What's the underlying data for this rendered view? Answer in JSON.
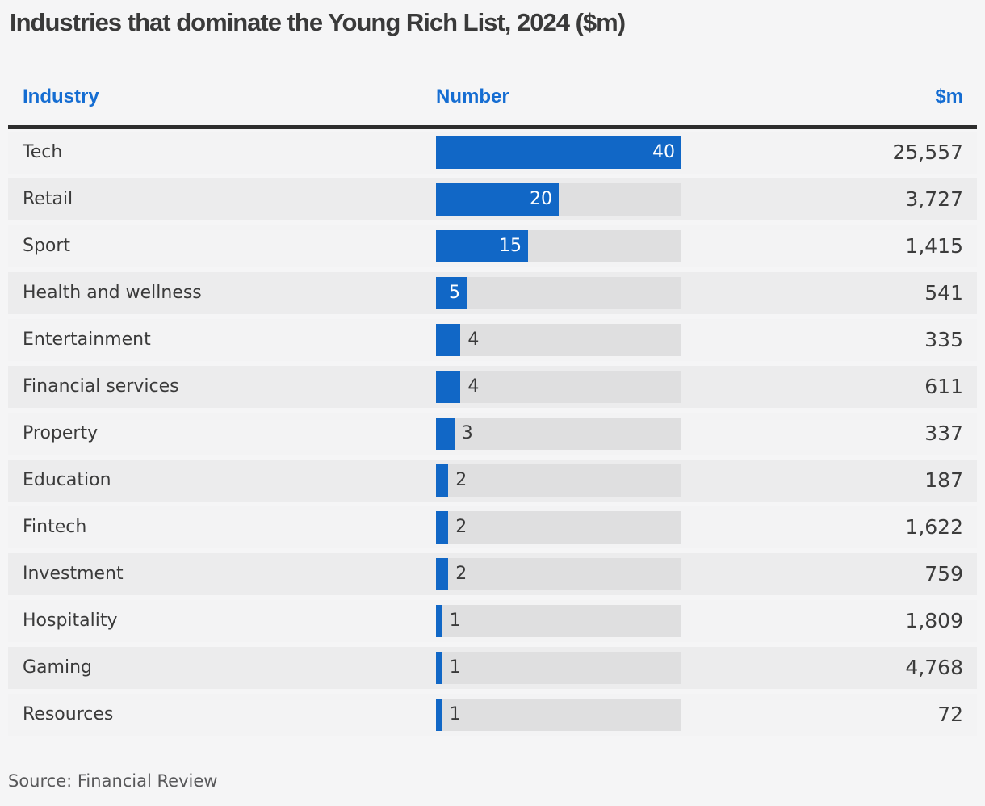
{
  "title": "Industries that dominate the Young Rich List, 2024 ($m)",
  "source": "Source: Financial Review",
  "columns": {
    "industry": "Industry",
    "number": "Number",
    "amount": "$m"
  },
  "colors": {
    "bar_blue": "#1167c6",
    "header_blue": "#156dd2",
    "bar_track_grey": "#dfdfe0",
    "row_light": "#f3f3f4",
    "row_dark": "#ececed",
    "rule_dark": "#2d2d2d",
    "text_dark": "#3a3a3a",
    "page_background": "#f5f5f6"
  },
  "rows": [
    {
      "industry": "Tech",
      "number": 40,
      "amount": "25,557"
    },
    {
      "industry": "Retail",
      "number": 20,
      "amount": "3,727"
    },
    {
      "industry": "Sport",
      "number": 15,
      "amount": "1,415"
    },
    {
      "industry": "Health and wellness",
      "number": 5,
      "amount": "541"
    },
    {
      "industry": "Entertainment",
      "number": 4,
      "amount": "335"
    },
    {
      "industry": "Financial services",
      "number": 4,
      "amount": "611"
    },
    {
      "industry": "Property",
      "number": 3,
      "amount": "337"
    },
    {
      "industry": "Education",
      "number": 2,
      "amount": "187"
    },
    {
      "industry": "Fintech",
      "number": 2,
      "amount": "1,622"
    },
    {
      "industry": "Investment",
      "number": 2,
      "amount": "759"
    },
    {
      "industry": "Hospitality",
      "number": 1,
      "amount": "1,809"
    },
    {
      "industry": "Gaming",
      "number": 1,
      "amount": "4,768"
    },
    {
      "industry": "Resources",
      "number": 1,
      "amount": "72"
    }
  ],
  "chart_data": {
    "type": "bar",
    "orientation": "horizontal",
    "title": "Industries that dominate the Young Rich List, 2024 ($m)",
    "categories": [
      "Tech",
      "Retail",
      "Sport",
      "Health and wellness",
      "Entertainment",
      "Financial services",
      "Property",
      "Education",
      "Fintech",
      "Investment",
      "Hospitality",
      "Gaming",
      "Resources"
    ],
    "series": [
      {
        "name": "Number",
        "values": [
          40,
          20,
          15,
          5,
          4,
          4,
          3,
          2,
          2,
          2,
          1,
          1,
          1
        ]
      },
      {
        "name": "$m",
        "values": [
          25557,
          3727,
          1415,
          541,
          335,
          611,
          337,
          187,
          1622,
          759,
          1809,
          4768,
          72
        ]
      }
    ],
    "xlabel": "",
    "ylabel": "",
    "bar_axis_max": 40,
    "inside_label_min": 5,
    "grid": false,
    "legend": false,
    "data_labels": true
  }
}
